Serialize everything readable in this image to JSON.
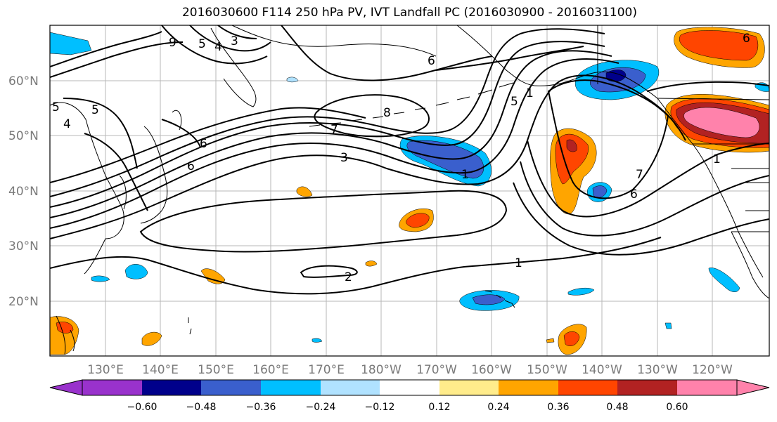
{
  "title": "2016030600 F114 250 hPa PV, IVT Landfall PC (2016030900 - 2016031100)",
  "lat_labels": [
    "60°N",
    "50°N",
    "40°N",
    "30°N",
    "20°N"
  ],
  "lon_labels": [
    "130°E",
    "140°E",
    "150°E",
    "160°E",
    "170°E",
    "180°W",
    "170°W",
    "160°W",
    "150°W",
    "140°W",
    "130°W",
    "120°W"
  ],
  "contour_labels": [
    "9",
    "5",
    "4",
    "3",
    "6",
    "5",
    "4",
    "5",
    "6",
    "8",
    "7",
    "3",
    "1",
    "5",
    "1",
    "7",
    "6",
    "6",
    "1",
    "2",
    "6",
    "1"
  ],
  "colorbar": {
    "ticks": [
      "−0.60",
      "−0.48",
      "−0.36",
      "−0.24",
      "−0.12",
      "0.12",
      "0.24",
      "0.36",
      "0.48",
      "0.60"
    ],
    "colors": [
      "#9932cc",
      "#00008b",
      "#3a5fcd",
      "#00bfff",
      "#b0e2ff",
      "#ffffff",
      "#ffec8b",
      "#ffa500",
      "#ff4500",
      "#b22222",
      "#ff82ab"
    ]
  }
}
